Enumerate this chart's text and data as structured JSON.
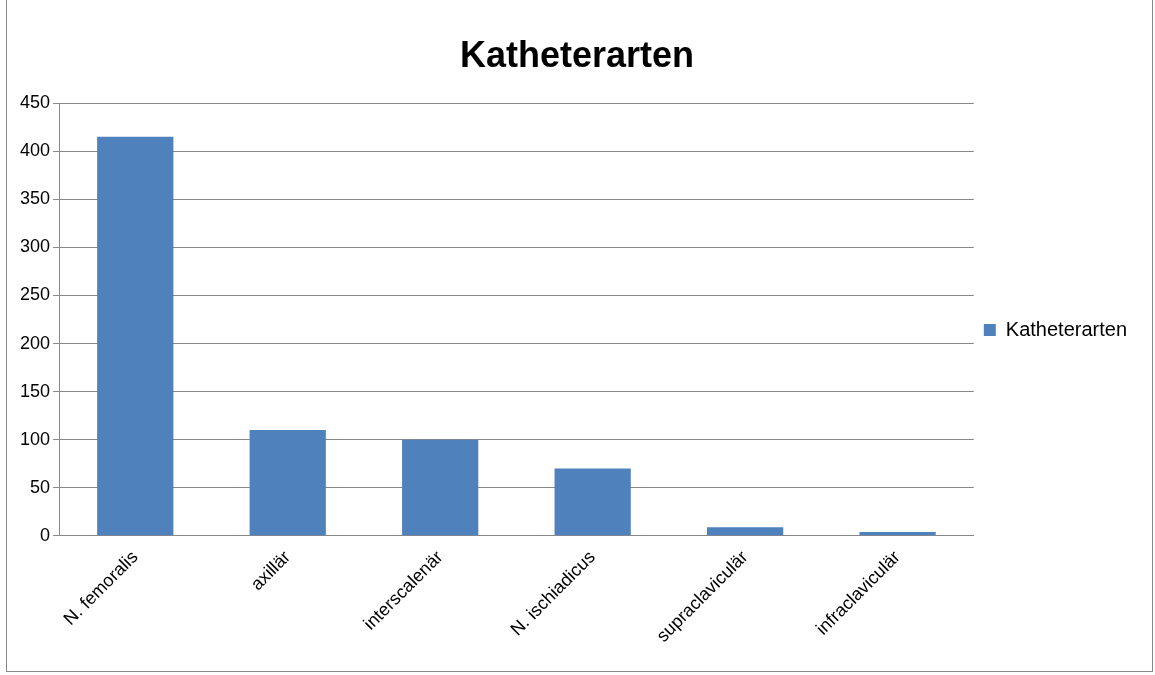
{
  "chart_data": {
    "type": "bar",
    "title": "Katheterarten",
    "categories": [
      "N. femoralis",
      "axillär",
      "interscalenär",
      "N. ischiadicus",
      "supraclaviculär",
      "infraclaviculär"
    ],
    "series": [
      {
        "name": "Katheterarten",
        "color": "#4f81bd",
        "values": [
          415,
          110,
          100,
          70,
          9,
          4
        ]
      }
    ],
    "ylim": [
      0,
      450
    ],
    "yticks": [
      0,
      50,
      100,
      150,
      200,
      250,
      300,
      350,
      400,
      450
    ],
    "grid": "y",
    "legend": "right"
  }
}
